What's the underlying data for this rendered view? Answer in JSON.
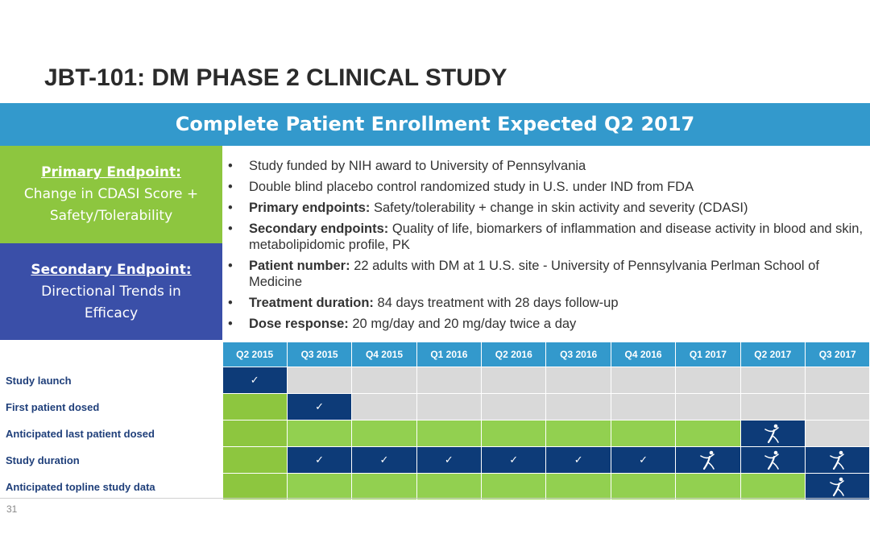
{
  "title": "JBT-101: DM PHASE 2 CLINICAL STUDY",
  "banner": "Complete Patient Enrollment Expected Q2 2017",
  "primary": {
    "heading": "Primary Endpoint:",
    "line1": "Change in CDASI Score +",
    "line2": "Safety/Tolerability"
  },
  "secondary": {
    "heading": "Secondary Endpoint:",
    "line1": "Directional Trends in",
    "line2": "Efficacy"
  },
  "bullets": [
    {
      "bold": "",
      "text": "Study funded by NIH award to University of Pennsylvania"
    },
    {
      "bold": "",
      "text": "Double blind placebo control randomized study in U.S. under IND from FDA"
    },
    {
      "bold": "Primary endpoints:",
      "text": " Safety/tolerability + change in skin activity and severity (CDASI)"
    },
    {
      "bold": "Secondary endpoints:",
      "text": " Quality of life, biomarkers of inflammation and disease activity in blood and skin, metabolipidomic profile, PK"
    },
    {
      "bold": "Patient number:",
      "text": " 22 adults with DM at 1 U.S. site - University of Pennsylvania Perlman School of Medicine"
    },
    {
      "bold": "Treatment duration:",
      "text": " 84 days treatment with 28 days follow-up"
    },
    {
      "bold": "Dose response:",
      "text": " 20 mg/day and 20 mg/day twice a day"
    }
  ],
  "timeline": {
    "quarters": [
      "Q2 2015",
      "Q3 2015",
      "Q4 2015",
      "Q1 2016",
      "Q2 2016",
      "Q3 2016",
      "Q4 2016",
      "Q1 2017",
      "Q2 2017",
      "Q3 2017"
    ],
    "rows": [
      {
        "label": "Study launch",
        "cells": [
          "navy:check",
          "grey",
          "grey",
          "grey",
          "grey",
          "grey",
          "grey",
          "grey",
          "grey",
          "grey"
        ]
      },
      {
        "label": "First patient dosed",
        "cells": [
          "green",
          "navy:check",
          "grey",
          "grey",
          "grey",
          "grey",
          "grey",
          "grey",
          "grey",
          "grey"
        ]
      },
      {
        "label": "Anticipated last patient dosed",
        "cells": [
          "green",
          "green",
          "green",
          "green",
          "green",
          "green",
          "green",
          "green",
          "navy:figure",
          "grey"
        ]
      },
      {
        "label": "Study duration",
        "cells": [
          "green",
          "navy:check",
          "navy:check",
          "navy:check",
          "navy:check",
          "navy:check",
          "navy:check",
          "navy:figure",
          "navy:figure",
          "navy:figure"
        ]
      },
      {
        "label": "Anticipated topline study data",
        "cells": [
          "green",
          "green",
          "green",
          "green",
          "green",
          "green",
          "green",
          "green",
          "green",
          "navy:figure"
        ]
      }
    ],
    "check_glyph": "✓",
    "colors": {
      "header": "#3399cc",
      "navy": "#0d3b78",
      "green": "#92d050",
      "grey": "#d9d9d9"
    },
    "icons": {
      "check": "checkmark-icon",
      "figure": "dancing-figure-icon"
    }
  },
  "page_number": "31"
}
